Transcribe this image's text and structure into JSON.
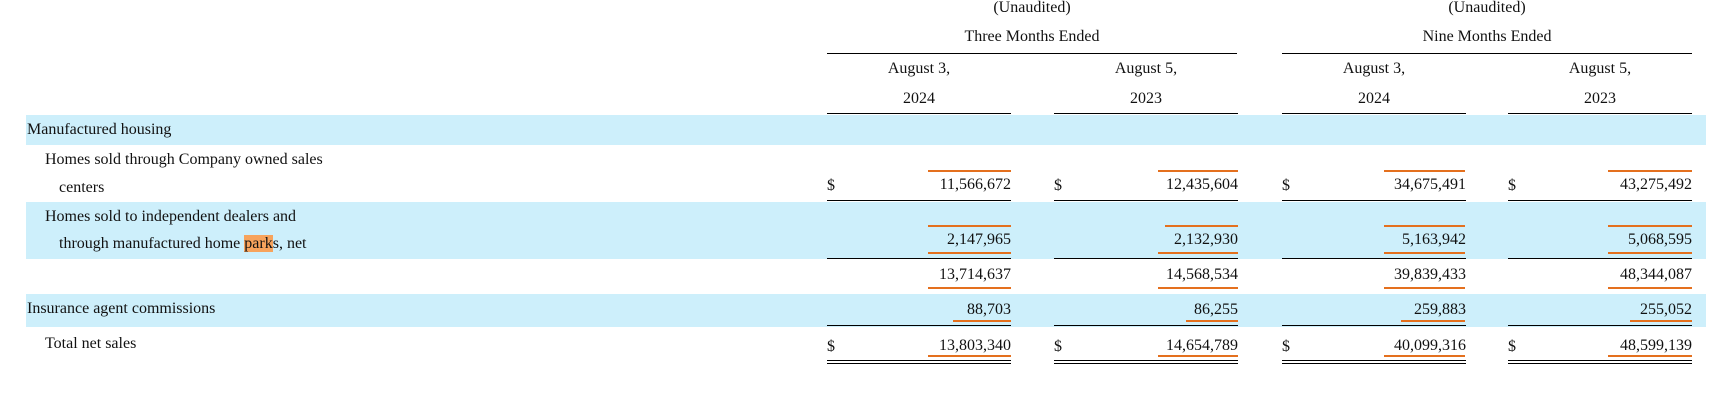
{
  "header": {
    "unaudited_1": "(Unaudited)",
    "unaudited_2": "(Unaudited)",
    "period_1": "Three Months Ended",
    "period_2": "Nine Months Ended",
    "columns": [
      {
        "month": "August 3,",
        "year": "2024"
      },
      {
        "month": "August 5,",
        "year": "2023"
      },
      {
        "month": "August 3,",
        "year": "2024"
      },
      {
        "month": "August 5,",
        "year": "2023"
      }
    ]
  },
  "rows": {
    "manufactured_housing": {
      "label": "Manufactured housing"
    },
    "company_owned": {
      "label_line1": "Homes sold through Company owned sales",
      "label_line2": "centers",
      "currency": "$",
      "values": [
        "11,566,672",
        "12,435,604",
        "34,675,491",
        "43,275,492"
      ]
    },
    "independent_dealers": {
      "label_line1": "Homes sold to independent dealers and",
      "label_line2_pre": "through manufactured home ",
      "label_line2_hl": "park",
      "label_line2_post": "s, net",
      "values": [
        "2,147,965",
        "2,132,930",
        "5,163,942",
        "5,068,595"
      ]
    },
    "subtotal": {
      "values": [
        "13,714,637",
        "14,568,534",
        "39,839,433",
        "48,344,087"
      ]
    },
    "insurance": {
      "label": "Insurance agent commissions",
      "values": [
        "88,703",
        "86,255",
        "259,883",
        "255,052"
      ]
    },
    "total": {
      "label": "Total net sales",
      "currency": "$",
      "values": [
        "13,803,340",
        "14,654,789",
        "40,099,316",
        "48,599,139"
      ]
    }
  },
  "colors": {
    "band": "#cdeffb",
    "highlight_underline": "#e4701e",
    "search_highlight": "#f7a35c"
  }
}
